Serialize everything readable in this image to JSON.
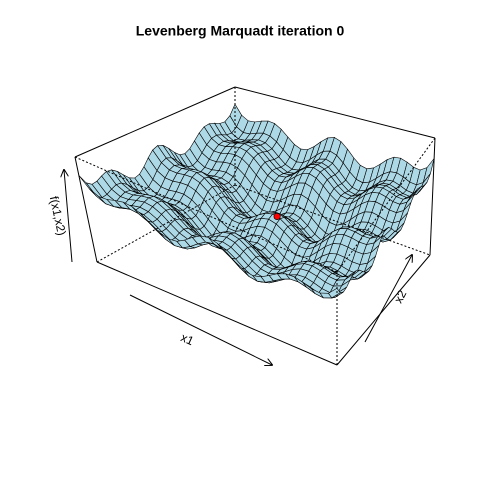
{
  "chart_data": {
    "type": "surface",
    "title": "Levenberg Marquadt iteration 0",
    "xlabel": "x1",
    "ylabel": "x2",
    "zlabel": "f(x1,x2)",
    "color": "#add8e6",
    "point_color": "#ff0000"
  }
}
